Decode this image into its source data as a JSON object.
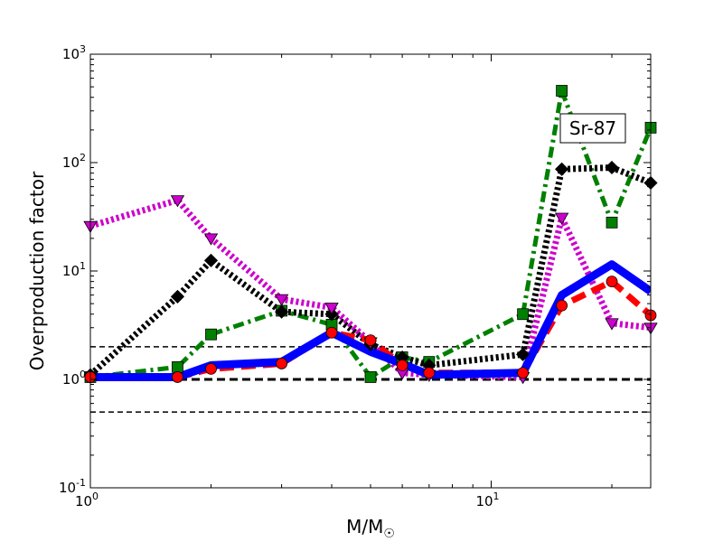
{
  "chart_data": {
    "type": "line",
    "title": "",
    "xlabel": "M/M",
    "xlabel_sub": "☉",
    "ylabel": "Overproduction factor",
    "xscale": "log",
    "yscale": "log",
    "xlim": [
      1,
      25
    ],
    "ylim": [
      0.1,
      1000
    ],
    "x_ticks": [
      {
        "base": "10",
        "exp": "0",
        "value": 1
      },
      {
        "base": "10",
        "exp": "1",
        "value": 10
      }
    ],
    "y_ticks": [
      {
        "base": "10",
        "exp": "-1",
        "value": 0.1
      },
      {
        "base": "10",
        "exp": "0",
        "value": 1
      },
      {
        "base": "10",
        "exp": "1",
        "value": 10
      },
      {
        "base": "10",
        "exp": "2",
        "value": 100
      },
      {
        "base": "10",
        "exp": "3",
        "value": 1000
      }
    ],
    "annotation": "Sr-87",
    "reference_lines": [
      {
        "y": 2,
        "width": "thin"
      },
      {
        "y": 1,
        "width": "thick"
      },
      {
        "y": 0.5,
        "width": "thin"
      }
    ],
    "series": [
      {
        "color": "#008000",
        "linestyle": "dashdot",
        "marker": "square",
        "x": [
          1,
          1.65,
          2,
          3,
          4,
          5,
          6,
          7,
          12,
          15,
          20,
          25
        ],
        "y": [
          1.05,
          1.3,
          2.6,
          4.3,
          3.2,
          1.05,
          1.6,
          1.45,
          4.0,
          460,
          28,
          210
        ]
      },
      {
        "color": "#000000",
        "linestyle": "dotted",
        "marker": "diamond",
        "x": [
          1,
          1.65,
          2,
          3,
          4,
          5,
          6,
          7,
          12,
          15,
          20,
          25
        ],
        "y": [
          1.1,
          5.8,
          12.5,
          4.2,
          4.0,
          2.1,
          1.6,
          1.35,
          1.7,
          87,
          90,
          65
        ]
      },
      {
        "color": "#cc00cc",
        "linestyle": "dotted",
        "marker": "triangle-down",
        "x": [
          1,
          1.65,
          2,
          3,
          4,
          5,
          6,
          7,
          12,
          15,
          20,
          25
        ],
        "y": [
          26,
          45,
          20,
          5.5,
          4.6,
          2.2,
          1.15,
          1.1,
          1.05,
          31,
          3.3,
          3.0
        ]
      },
      {
        "color": "#ff0000",
        "linestyle": "dashed",
        "marker": "circle",
        "x": [
          1,
          1.65,
          2,
          3,
          4,
          5,
          6,
          7,
          12,
          15,
          20,
          25
        ],
        "y": [
          1.05,
          1.05,
          1.25,
          1.4,
          2.7,
          2.3,
          1.35,
          1.15,
          1.15,
          4.8,
          8.0,
          3.9
        ]
      },
      {
        "color": "#0000ff",
        "linestyle": "solid",
        "marker": "none",
        "x": [
          1,
          1.65,
          2,
          3,
          4,
          5,
          6,
          7,
          12,
          15,
          20,
          25
        ],
        "y": [
          1.05,
          1.05,
          1.35,
          1.45,
          2.7,
          1.8,
          1.4,
          1.1,
          1.15,
          6.0,
          11.5,
          6.5
        ]
      }
    ]
  }
}
